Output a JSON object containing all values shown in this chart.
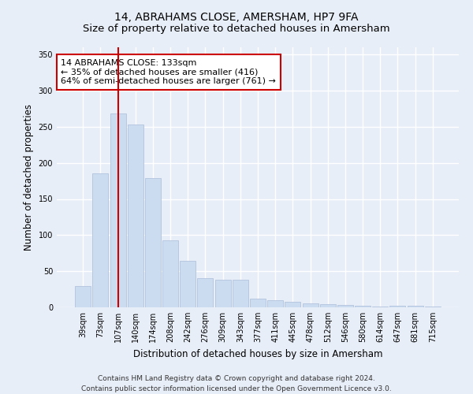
{
  "title": "14, ABRAHAMS CLOSE, AMERSHAM, HP7 9FA",
  "subtitle": "Size of property relative to detached houses in Amersham",
  "xlabel": "Distribution of detached houses by size in Amersham",
  "ylabel": "Number of detached properties",
  "categories": [
    "39sqm",
    "73sqm",
    "107sqm",
    "140sqm",
    "174sqm",
    "208sqm",
    "242sqm",
    "276sqm",
    "309sqm",
    "343sqm",
    "377sqm",
    "411sqm",
    "445sqm",
    "478sqm",
    "512sqm",
    "546sqm",
    "580sqm",
    "614sqm",
    "647sqm",
    "681sqm",
    "715sqm"
  ],
  "values": [
    30,
    185,
    268,
    253,
    179,
    93,
    64,
    40,
    38,
    38,
    12,
    10,
    8,
    5,
    4,
    3,
    2,
    1,
    2,
    2,
    1
  ],
  "bar_color": "#ccdcf0",
  "bar_edge_color": "#aabcd8",
  "vline_x": 2.0,
  "vline_color": "#cc0000",
  "vline_label": "14 ABRAHAMS CLOSE: 133sqm",
  "annotation_line1": "← 35% of detached houses are smaller (416)",
  "annotation_line2": "64% of semi-detached houses are larger (761) →",
  "annotation_box_edge_color": "#cc0000",
  "annotation_box_bg": "#ffffff",
  "ylim": [
    0,
    360
  ],
  "yticks": [
    0,
    50,
    100,
    150,
    200,
    250,
    300,
    350
  ],
  "bg_color": "#e8eef8",
  "plot_bg_color": "#e8eef8",
  "footer_line1": "Contains HM Land Registry data © Crown copyright and database right 2024.",
  "footer_line2": "Contains public sector information licensed under the Open Government Licence v3.0.",
  "title_fontsize": 10,
  "subtitle_fontsize": 9.5,
  "axis_label_fontsize": 8.5,
  "tick_fontsize": 7,
  "annotation_fontsize": 8,
  "footer_fontsize": 6.5,
  "grid_color": "#ffffff",
  "grid_linewidth": 1.0
}
